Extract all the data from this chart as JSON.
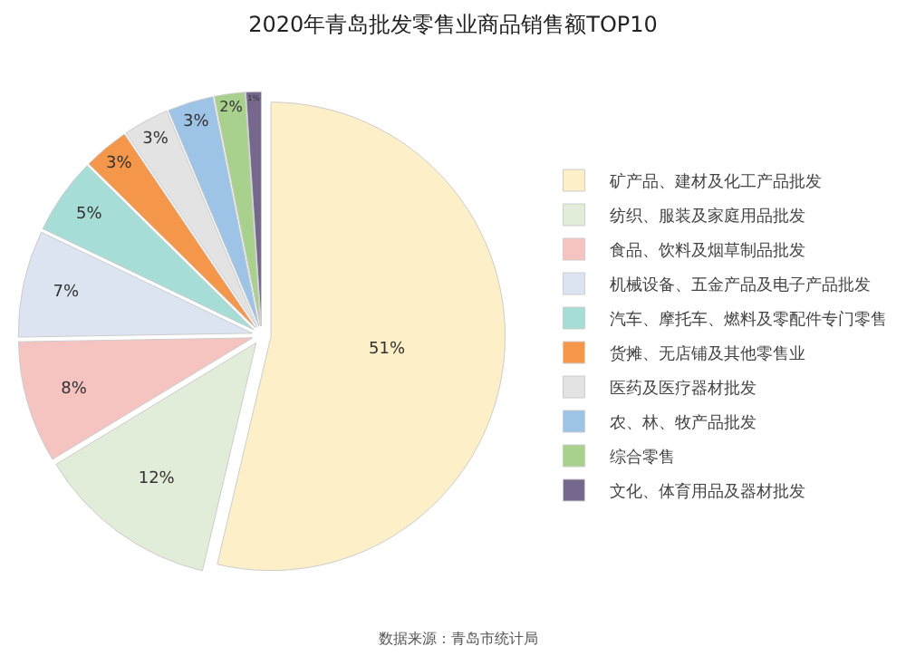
{
  "chart_data": {
    "type": "pie",
    "title": "2020年青岛批发零售业商品销售额TOP10",
    "categories": [
      "矿产品、建材及化工产品批发",
      "纺织、服装及家庭用品批发",
      "食品、饮料及烟草制品批发",
      "机械设备、五金产品及电子产品批发",
      "汽车、摩托车、燃料及零配件专门零售",
      "货摊、无店铺及其他零售业",
      "医药及医疗器材批发",
      "农、林、牧产品批发",
      "综合零售",
      "文化、体育用品及器材批发"
    ],
    "values": [
      51,
      12,
      8,
      7,
      5,
      3,
      3,
      3,
      2,
      1
    ],
    "value_labels": [
      "51%",
      "12%",
      "8%",
      "7%",
      "5%",
      "3%",
      "3%",
      "3%",
      "2%",
      "1%"
    ],
    "colors": [
      "#fdefc8",
      "#e1edd8",
      "#f6c4c0",
      "#dce4f2",
      "#a6ddd6",
      "#f5974a",
      "#e3e3e3",
      "#9dc3e6",
      "#a9d18e",
      "#76688c"
    ],
    "legend": "right",
    "annotations": [
      "数据来源：青岛市统计局"
    ]
  }
}
